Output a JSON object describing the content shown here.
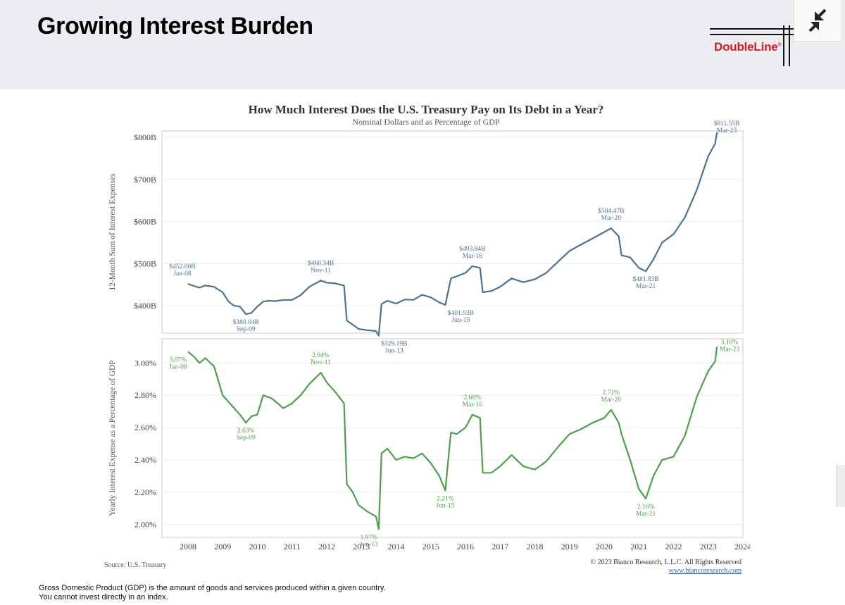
{
  "header": {
    "title": "Growing Interest Burden",
    "logo_text": "DoubleLine",
    "logo_registered": "®",
    "collapse_icon": "collapse-arrows-icon"
  },
  "chart_data": {
    "title": "How Much Interest Does the U.S. Treasury Pay on Its Debt in a Year?",
    "subtitle": "Nominal Dollars and as Percentage of GDP",
    "type": "line",
    "x_ticks": [
      "2008",
      "2009",
      "2010",
      "2011",
      "2012",
      "2013",
      "2014",
      "2015",
      "2016",
      "2017",
      "2018",
      "2019",
      "2020",
      "2021",
      "2022",
      "2023",
      "2024"
    ],
    "grid": true,
    "panels": [
      {
        "name": "dollars",
        "ylabel": "12-Month Sum of Interest Expenses",
        "color": "#4a7296",
        "ylim": [
          335,
          815
        ],
        "y_ticks": [
          400,
          500,
          600,
          700,
          800
        ],
        "y_tick_labels": [
          "$400B",
          "$500B",
          "$600B",
          "$700B",
          "$800B"
        ],
        "series": [
          {
            "x": 2008.0,
            "y": 452
          },
          {
            "x": 2008.17,
            "y": 447
          },
          {
            "x": 2008.33,
            "y": 443
          },
          {
            "x": 2008.5,
            "y": 448
          },
          {
            "x": 2008.75,
            "y": 445
          },
          {
            "x": 2009.0,
            "y": 432
          },
          {
            "x": 2009.17,
            "y": 410
          },
          {
            "x": 2009.33,
            "y": 400
          },
          {
            "x": 2009.5,
            "y": 398
          },
          {
            "x": 2009.67,
            "y": 380
          },
          {
            "x": 2009.83,
            "y": 383
          },
          {
            "x": 2010.0,
            "y": 398
          },
          {
            "x": 2010.17,
            "y": 410
          },
          {
            "x": 2010.33,
            "y": 412
          },
          {
            "x": 2010.5,
            "y": 411
          },
          {
            "x": 2010.75,
            "y": 414
          },
          {
            "x": 2011.0,
            "y": 414
          },
          {
            "x": 2011.25,
            "y": 425
          },
          {
            "x": 2011.5,
            "y": 445
          },
          {
            "x": 2011.83,
            "y": 460
          },
          {
            "x": 2012.0,
            "y": 455
          },
          {
            "x": 2012.25,
            "y": 453
          },
          {
            "x": 2012.5,
            "y": 448
          },
          {
            "x": 2012.58,
            "y": 365
          },
          {
            "x": 2012.75,
            "y": 355
          },
          {
            "x": 2012.92,
            "y": 345
          },
          {
            "x": 2013.17,
            "y": 342
          },
          {
            "x": 2013.42,
            "y": 340
          },
          {
            "x": 2013.5,
            "y": 329
          },
          {
            "x": 2013.58,
            "y": 404
          },
          {
            "x": 2013.75,
            "y": 412
          },
          {
            "x": 2014.0,
            "y": 405
          },
          {
            "x": 2014.25,
            "y": 415
          },
          {
            "x": 2014.5,
            "y": 414
          },
          {
            "x": 2014.75,
            "y": 426
          },
          {
            "x": 2015.0,
            "y": 420
          },
          {
            "x": 2015.25,
            "y": 408
          },
          {
            "x": 2015.42,
            "y": 402
          },
          {
            "x": 2015.58,
            "y": 465
          },
          {
            "x": 2015.75,
            "y": 470
          },
          {
            "x": 2016.0,
            "y": 478
          },
          {
            "x": 2016.2,
            "y": 494
          },
          {
            "x": 2016.42,
            "y": 490
          },
          {
            "x": 2016.5,
            "y": 432
          },
          {
            "x": 2016.75,
            "y": 435
          },
          {
            "x": 2017.0,
            "y": 445
          },
          {
            "x": 2017.33,
            "y": 465
          },
          {
            "x": 2017.67,
            "y": 456
          },
          {
            "x": 2018.0,
            "y": 463
          },
          {
            "x": 2018.33,
            "y": 478
          },
          {
            "x": 2018.67,
            "y": 505
          },
          {
            "x": 2019.0,
            "y": 530
          },
          {
            "x": 2019.33,
            "y": 545
          },
          {
            "x": 2019.67,
            "y": 560
          },
          {
            "x": 2020.0,
            "y": 575
          },
          {
            "x": 2020.2,
            "y": 584
          },
          {
            "x": 2020.42,
            "y": 565
          },
          {
            "x": 2020.5,
            "y": 520
          },
          {
            "x": 2020.75,
            "y": 515
          },
          {
            "x": 2021.0,
            "y": 490
          },
          {
            "x": 2021.2,
            "y": 482
          },
          {
            "x": 2021.42,
            "y": 510
          },
          {
            "x": 2021.67,
            "y": 550
          },
          {
            "x": 2022.0,
            "y": 570
          },
          {
            "x": 2022.33,
            "y": 610
          },
          {
            "x": 2022.67,
            "y": 675
          },
          {
            "x": 2023.0,
            "y": 755
          },
          {
            "x": 2023.2,
            "y": 785
          },
          {
            "x": 2023.25,
            "y": 811.55
          }
        ],
        "annotations": [
          {
            "x": 2008.0,
            "y": 452,
            "lines": [
              "$452.00B",
              "Jan-08"
            ],
            "pos": "above-left"
          },
          {
            "x": 2009.67,
            "y": 380,
            "lines": [
              "$380.04B",
              "Sep-09"
            ],
            "pos": "below"
          },
          {
            "x": 2011.83,
            "y": 460,
            "lines": [
              "$460.34B",
              "Nov-11"
            ],
            "pos": "above"
          },
          {
            "x": 2013.5,
            "y": 329,
            "lines": [
              "$329.19B",
              "Jun-13"
            ],
            "pos": "below-right"
          },
          {
            "x": 2015.42,
            "y": 402,
            "lines": [
              "$401.93B",
              "Jun-15"
            ],
            "pos": "below-right"
          },
          {
            "x": 2016.2,
            "y": 494,
            "lines": [
              "$493.84B",
              "Mar-16"
            ],
            "pos": "above"
          },
          {
            "x": 2020.2,
            "y": 584,
            "lines": [
              "$584.47B",
              "Mar-20"
            ],
            "pos": "above"
          },
          {
            "x": 2021.2,
            "y": 482,
            "lines": [
              "$481.83B",
              "Mar-21"
            ],
            "pos": "below"
          },
          {
            "x": 2023.25,
            "y": 811.55,
            "lines": [
              "$811.55B",
              "Mar-23"
            ],
            "pos": "above-right"
          }
        ]
      },
      {
        "name": "pct_gdp",
        "ylabel": "Yearly Interest Expense as a Percentage of GDP",
        "color": "#4ca04a",
        "ylim": [
          1.92,
          3.15
        ],
        "y_ticks": [
          2.0,
          2.2,
          2.4,
          2.6,
          2.8,
          3.0
        ],
        "y_tick_labels": [
          "2.00%",
          "2.20%",
          "2.40%",
          "2.60%",
          "2.80%",
          "3.00%"
        ],
        "series": [
          {
            "x": 2008.0,
            "y": 3.07
          },
          {
            "x": 2008.17,
            "y": 3.04
          },
          {
            "x": 2008.33,
            "y": 3.0
          },
          {
            "x": 2008.5,
            "y": 3.03
          },
          {
            "x": 2008.75,
            "y": 2.98
          },
          {
            "x": 2009.0,
            "y": 2.8
          },
          {
            "x": 2009.25,
            "y": 2.74
          },
          {
            "x": 2009.5,
            "y": 2.68
          },
          {
            "x": 2009.67,
            "y": 2.63
          },
          {
            "x": 2009.83,
            "y": 2.67
          },
          {
            "x": 2010.0,
            "y": 2.68
          },
          {
            "x": 2010.17,
            "y": 2.8
          },
          {
            "x": 2010.42,
            "y": 2.78
          },
          {
            "x": 2010.75,
            "y": 2.72
          },
          {
            "x": 2011.0,
            "y": 2.75
          },
          {
            "x": 2011.25,
            "y": 2.8
          },
          {
            "x": 2011.5,
            "y": 2.87
          },
          {
            "x": 2011.83,
            "y": 2.94
          },
          {
            "x": 2012.0,
            "y": 2.88
          },
          {
            "x": 2012.25,
            "y": 2.82
          },
          {
            "x": 2012.5,
            "y": 2.75
          },
          {
            "x": 2012.58,
            "y": 2.25
          },
          {
            "x": 2012.75,
            "y": 2.2
          },
          {
            "x": 2012.92,
            "y": 2.12
          },
          {
            "x": 2013.17,
            "y": 2.08
          },
          {
            "x": 2013.42,
            "y": 2.05
          },
          {
            "x": 2013.5,
            "y": 1.97
          },
          {
            "x": 2013.58,
            "y": 2.44
          },
          {
            "x": 2013.75,
            "y": 2.47
          },
          {
            "x": 2014.0,
            "y": 2.4
          },
          {
            "x": 2014.25,
            "y": 2.42
          },
          {
            "x": 2014.5,
            "y": 2.41
          },
          {
            "x": 2014.75,
            "y": 2.44
          },
          {
            "x": 2015.0,
            "y": 2.38
          },
          {
            "x": 2015.25,
            "y": 2.3
          },
          {
            "x": 2015.42,
            "y": 2.21
          },
          {
            "x": 2015.58,
            "y": 2.57
          },
          {
            "x": 2015.75,
            "y": 2.56
          },
          {
            "x": 2016.0,
            "y": 2.6
          },
          {
            "x": 2016.2,
            "y": 2.68
          },
          {
            "x": 2016.42,
            "y": 2.66
          },
          {
            "x": 2016.5,
            "y": 2.32
          },
          {
            "x": 2016.75,
            "y": 2.32
          },
          {
            "x": 2017.0,
            "y": 2.36
          },
          {
            "x": 2017.33,
            "y": 2.43
          },
          {
            "x": 2017.67,
            "y": 2.36
          },
          {
            "x": 2018.0,
            "y": 2.34
          },
          {
            "x": 2018.33,
            "y": 2.39
          },
          {
            "x": 2018.67,
            "y": 2.48
          },
          {
            "x": 2019.0,
            "y": 2.56
          },
          {
            "x": 2019.33,
            "y": 2.59
          },
          {
            "x": 2019.67,
            "y": 2.63
          },
          {
            "x": 2020.0,
            "y": 2.66
          },
          {
            "x": 2020.2,
            "y": 2.71
          },
          {
            "x": 2020.42,
            "y": 2.63
          },
          {
            "x": 2020.5,
            "y": 2.56
          },
          {
            "x": 2020.75,
            "y": 2.4
          },
          {
            "x": 2021.0,
            "y": 2.22
          },
          {
            "x": 2021.2,
            "y": 2.16
          },
          {
            "x": 2021.42,
            "y": 2.3
          },
          {
            "x": 2021.67,
            "y": 2.4
          },
          {
            "x": 2022.0,
            "y": 2.42
          },
          {
            "x": 2022.33,
            "y": 2.55
          },
          {
            "x": 2022.67,
            "y": 2.79
          },
          {
            "x": 2023.0,
            "y": 2.95
          },
          {
            "x": 2023.2,
            "y": 3.01
          },
          {
            "x": 2023.25,
            "y": 3.1
          }
        ],
        "annotations": [
          {
            "x": 2008.0,
            "y": 3.07,
            "lines": [
              "3.07%",
              "Jan-08"
            ],
            "pos": "below-left"
          },
          {
            "x": 2009.67,
            "y": 2.63,
            "lines": [
              "2.63%",
              "Sep-09"
            ],
            "pos": "below"
          },
          {
            "x": 2011.83,
            "y": 2.94,
            "lines": [
              "2.94%",
              "Nov-11"
            ],
            "pos": "above"
          },
          {
            "x": 2013.5,
            "y": 1.97,
            "lines": [
              "1.97%",
              "Jun-13"
            ],
            "pos": "below-left"
          },
          {
            "x": 2015.42,
            "y": 2.21,
            "lines": [
              "2.21%",
              "Jun-15"
            ],
            "pos": "below"
          },
          {
            "x": 2016.2,
            "y": 2.68,
            "lines": [
              "2.68%",
              "Mar-16"
            ],
            "pos": "above"
          },
          {
            "x": 2020.2,
            "y": 2.71,
            "lines": [
              "2.71%",
              "Mar-20"
            ],
            "pos": "above"
          },
          {
            "x": 2021.2,
            "y": 2.16,
            "lines": [
              "2.16%",
              "Mar-21"
            ],
            "pos": "below"
          },
          {
            "x": 2023.25,
            "y": 3.1,
            "lines": [
              "3.10%",
              "Mar-23"
            ],
            "pos": "right"
          }
        ]
      }
    ]
  },
  "source": "Source: U.S. Treasury",
  "copyright": "© 2023 Bianco Research, L.L.C. All Rights Reserved",
  "copyright_url": "www.biancoresearch.com",
  "footnote_line1": "Gross Domestic Product (GDP) is the amount of goods and services produced within a given country.",
  "footnote_line2": "You cannot invest directly in an index."
}
